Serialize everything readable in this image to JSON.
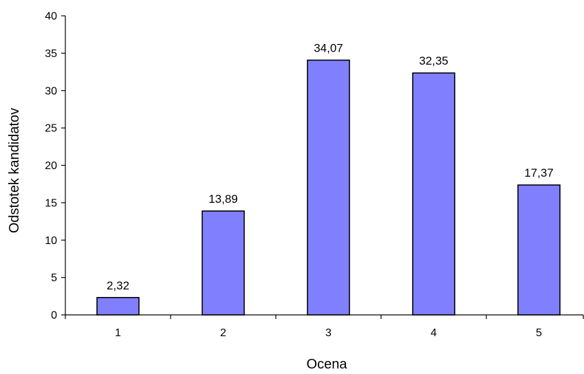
{
  "chart_data": {
    "type": "bar",
    "categories": [
      "1",
      "2",
      "3",
      "4",
      "5"
    ],
    "values": [
      2.32,
      13.89,
      34.07,
      32.35,
      17.37
    ],
    "data_labels": [
      "2,32",
      "13,89",
      "34,07",
      "32,35",
      "17,37"
    ],
    "title": "",
    "xlabel": "Ocena",
    "ylabel": "Odstotek kandidatov",
    "ylim": [
      0,
      40
    ],
    "yticks": [
      0,
      5,
      10,
      15,
      20,
      25,
      30,
      35,
      40
    ],
    "grid": false,
    "legend": "none",
    "colors": {
      "bar_fill": "#8080ff",
      "bar_stroke": "#000000",
      "axis": "#000000"
    }
  }
}
